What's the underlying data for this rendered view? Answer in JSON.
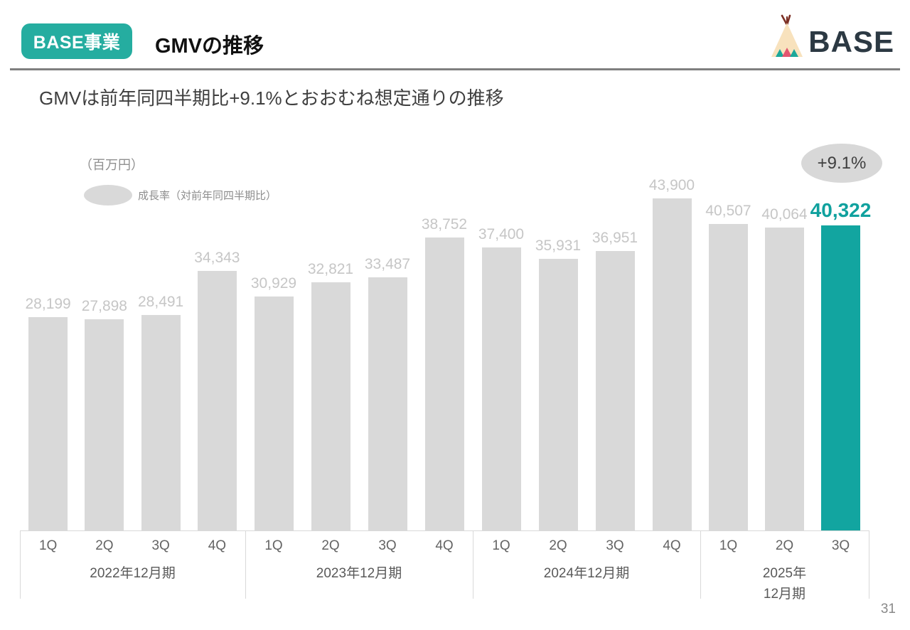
{
  "header": {
    "badge": "BASE事業",
    "title": "GMVの推移",
    "logo_text": "BASE"
  },
  "subtitle": "GMVは前年同四半期比+9.1%とおおむね想定通りの推移",
  "chart": {
    "unit_label": "（百万円）",
    "legend_label": "成長率（対前年同四半期比）",
    "growth_badge": "+9.1%"
  },
  "chart_data": {
    "type": "bar",
    "title": "GMVの推移",
    "ylabel": "百万円",
    "legend": "成長率（対前年同四半期比）",
    "yoy_growth_latest": "+9.1%",
    "bar_color": "#d9d9d9",
    "highlight_color": "#12a5a0",
    "highlight_index": 14,
    "ylim": [
      0,
      43900
    ],
    "groups": [
      {
        "year_label": "2022年12月期",
        "quarters": [
          "1Q",
          "2Q",
          "3Q",
          "4Q"
        ],
        "values": [
          28199,
          27898,
          28491,
          34343
        ]
      },
      {
        "year_label": "2023年12月期",
        "quarters": [
          "1Q",
          "2Q",
          "3Q",
          "4Q"
        ],
        "values": [
          30929,
          32821,
          33487,
          38752
        ]
      },
      {
        "year_label": "2024年12月期",
        "quarters": [
          "1Q",
          "2Q",
          "3Q",
          "4Q"
        ],
        "values": [
          37400,
          35931,
          36951,
          43900
        ]
      },
      {
        "year_label": "2025年\n12月期",
        "quarters": [
          "1Q",
          "2Q",
          "3Q"
        ],
        "values": [
          40507,
          40064,
          40322
        ]
      }
    ]
  },
  "page_number": "31"
}
